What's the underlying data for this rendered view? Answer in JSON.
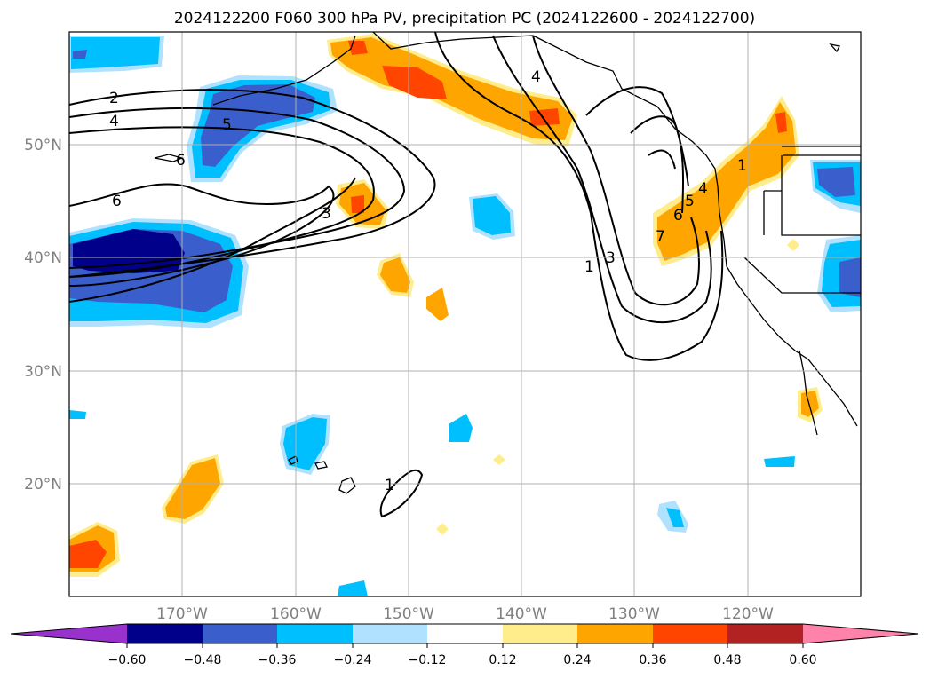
{
  "title": "2024122200 F060 300 hPa PV, precipitation PC (2024122600 - 2024122700)",
  "lat_labels": [
    "50°N",
    "40°N",
    "30°N",
    "20°N"
  ],
  "lon_labels": [
    "170°W",
    "160°W",
    "150°W",
    "140°W",
    "130°W",
    "120°W"
  ],
  "contour_labels": [
    "2",
    "4",
    "5",
    "6",
    "6",
    "3",
    "4",
    "1",
    "3",
    "7",
    "6",
    "5",
    "4",
    "1",
    "1"
  ],
  "colorbar": {
    "tick_labels": [
      "−0.60",
      "−0.48",
      "−0.36",
      "−0.24",
      "−0.12",
      "0.12",
      "0.24",
      "0.36",
      "0.48",
      "0.60"
    ],
    "colors": [
      "#9932cc",
      "#00008b",
      "#3a5fcd",
      "#00bfff",
      "#b0e2ff",
      "#ffffff",
      "#ffec8b",
      "#ffa500",
      "#ff4500",
      "#b22222",
      "#ff82ab"
    ]
  }
}
